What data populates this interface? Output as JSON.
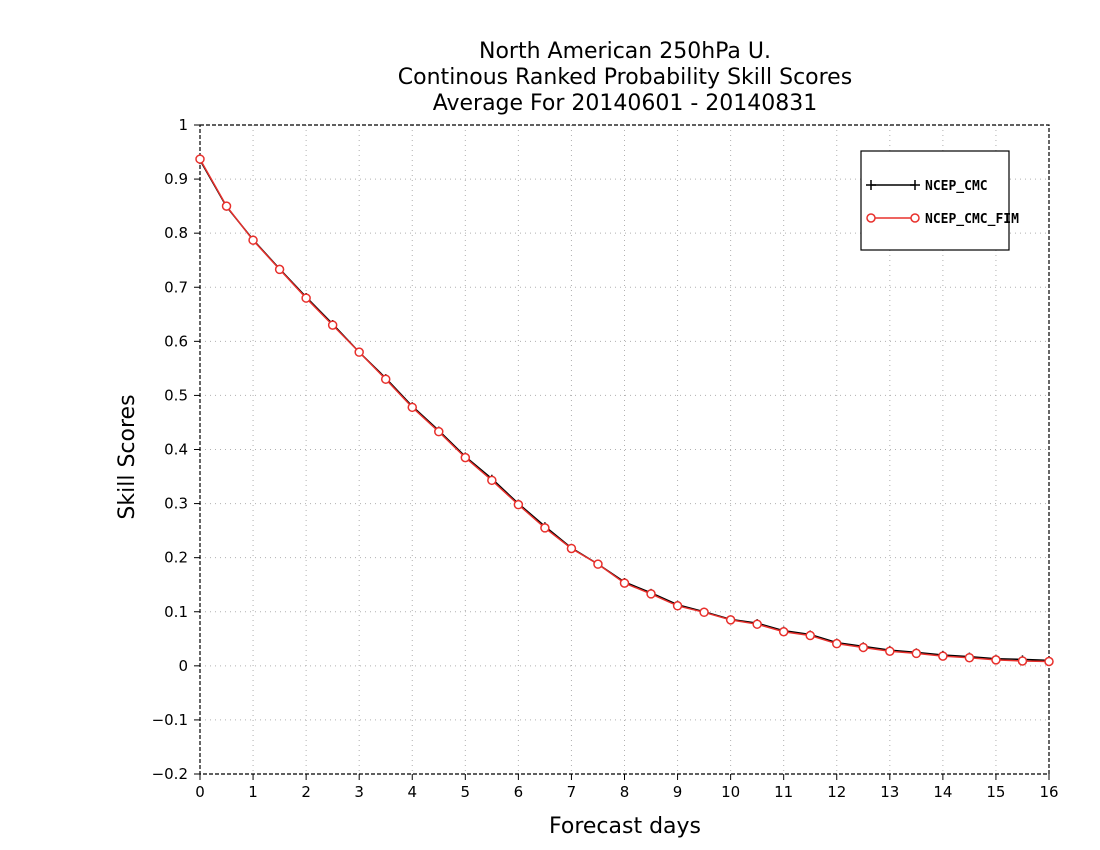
{
  "chart_data": {
    "type": "line",
    "title": [
      "North American 250hPa U.",
      "Continous Ranked Probability Skill Scores",
      "Average For 20140601 - 20140831"
    ],
    "xlabel": "Forecast days",
    "ylabel": "Skill Scores",
    "xlim": [
      0,
      16
    ],
    "ylim": [
      -0.2,
      1
    ],
    "xticks": [
      "0",
      "1",
      "2",
      "3",
      "4",
      "5",
      "6",
      "7",
      "8",
      "9",
      "10",
      "11",
      "12",
      "13",
      "14",
      "15",
      "16"
    ],
    "yticks": [
      "−0.2",
      "−0.1",
      "0",
      "0.1",
      "0.2",
      "0.3",
      "0.4",
      "0.5",
      "0.6",
      "0.7",
      "0.8",
      "0.9",
      "1"
    ],
    "xtick_values": [
      0,
      1,
      2,
      3,
      4,
      5,
      6,
      7,
      8,
      9,
      10,
      11,
      12,
      13,
      14,
      15,
      16
    ],
    "ytick_values": [
      -0.2,
      -0.1,
      0,
      0.1,
      0.2,
      0.3,
      0.4,
      0.5,
      0.6,
      0.7,
      0.8,
      0.9,
      1
    ],
    "grid": true,
    "legend_position": "top-right",
    "x": [
      0,
      0.5,
      1,
      1.5,
      2,
      2.5,
      3,
      3.5,
      4,
      4.5,
      5,
      5.5,
      6,
      6.5,
      7,
      7.5,
      8,
      8.5,
      9,
      9.5,
      10,
      10.5,
      11,
      11.5,
      12,
      12.5,
      13,
      13.5,
      14,
      14.5,
      15,
      15.5,
      16
    ],
    "series": [
      {
        "name": "NCEP_CMC",
        "color": "#000000",
        "marker": "plus",
        "values": [
          0.935,
          0.849,
          0.788,
          0.734,
          0.682,
          0.632,
          0.58,
          0.532,
          0.48,
          0.435,
          0.387,
          0.346,
          0.3,
          0.258,
          0.218,
          0.188,
          0.155,
          0.135,
          0.113,
          0.1,
          0.086,
          0.079,
          0.065,
          0.058,
          0.043,
          0.036,
          0.029,
          0.025,
          0.02,
          0.017,
          0.013,
          0.012,
          0.01
        ]
      },
      {
        "name": "NCEP_CMC_FIM",
        "color": "#e8302c",
        "marker": "circle",
        "values": [
          0.937,
          0.85,
          0.787,
          0.733,
          0.68,
          0.63,
          0.58,
          0.53,
          0.478,
          0.433,
          0.385,
          0.343,
          0.298,
          0.255,
          0.217,
          0.188,
          0.153,
          0.133,
          0.111,
          0.099,
          0.085,
          0.077,
          0.063,
          0.056,
          0.041,
          0.034,
          0.027,
          0.023,
          0.018,
          0.015,
          0.011,
          0.009,
          0.008
        ]
      }
    ]
  }
}
